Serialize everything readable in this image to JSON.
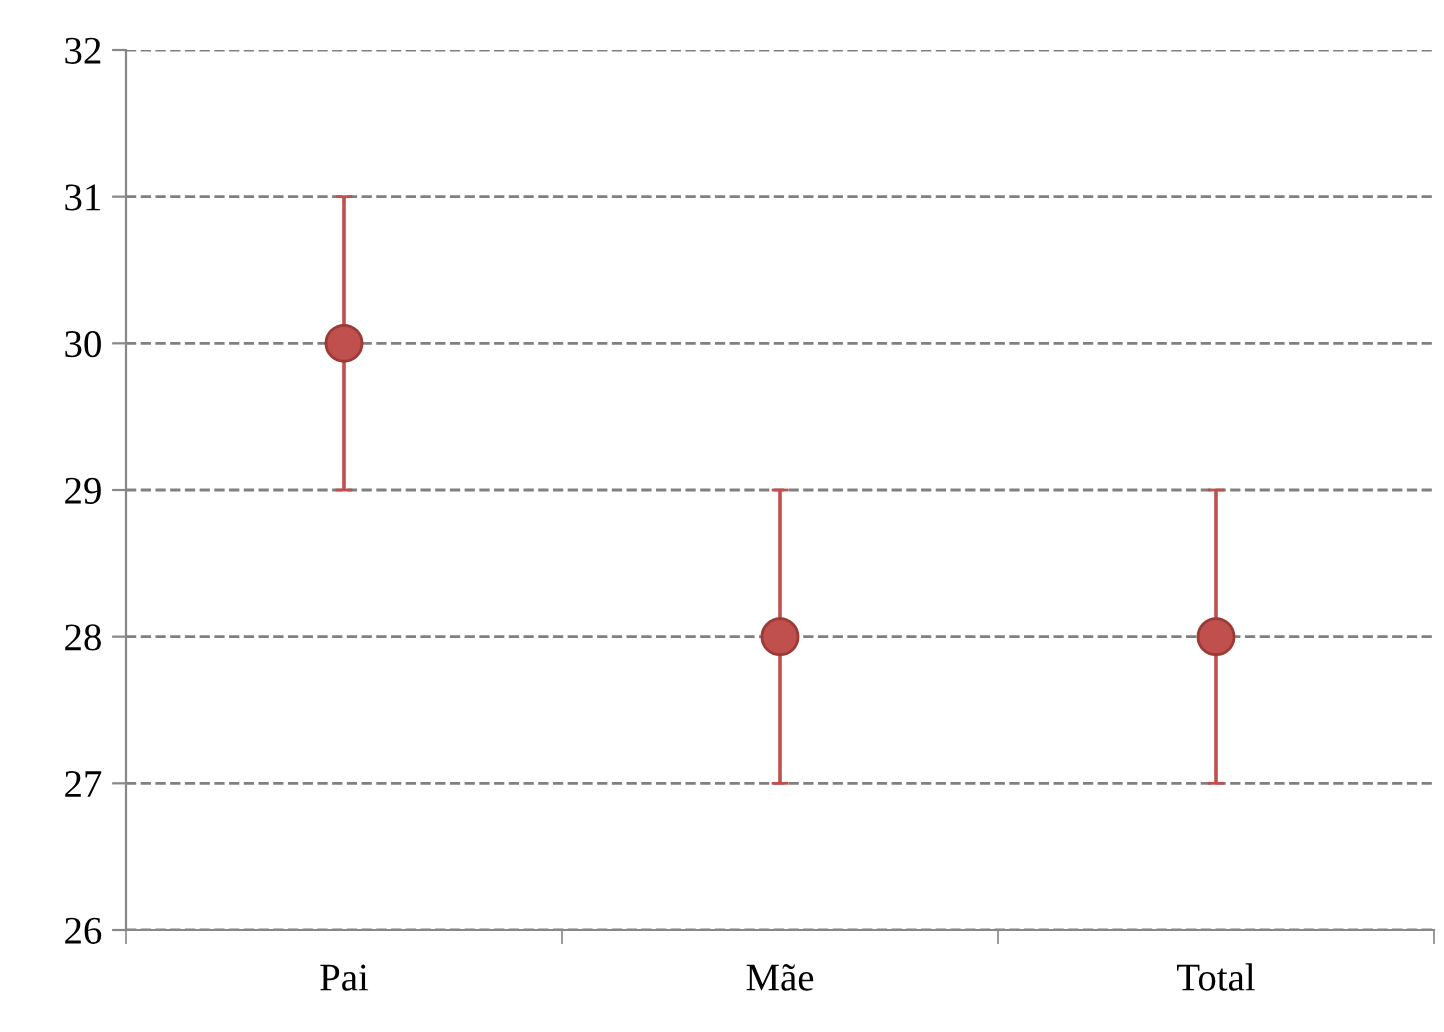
{
  "chart_data": {
    "type": "scatter",
    "categories": [
      "Pai",
      "Mãe",
      "Total"
    ],
    "series": [
      {
        "color": "#c0504d",
        "values": [
          30,
          28,
          28
        ],
        "errors": [
          1,
          1,
          1
        ]
      }
    ],
    "ylim": [
      26,
      32
    ],
    "yticks": [
      26,
      27,
      28,
      29,
      30,
      31,
      32
    ],
    "grid": "y",
    "marker": "circle"
  }
}
